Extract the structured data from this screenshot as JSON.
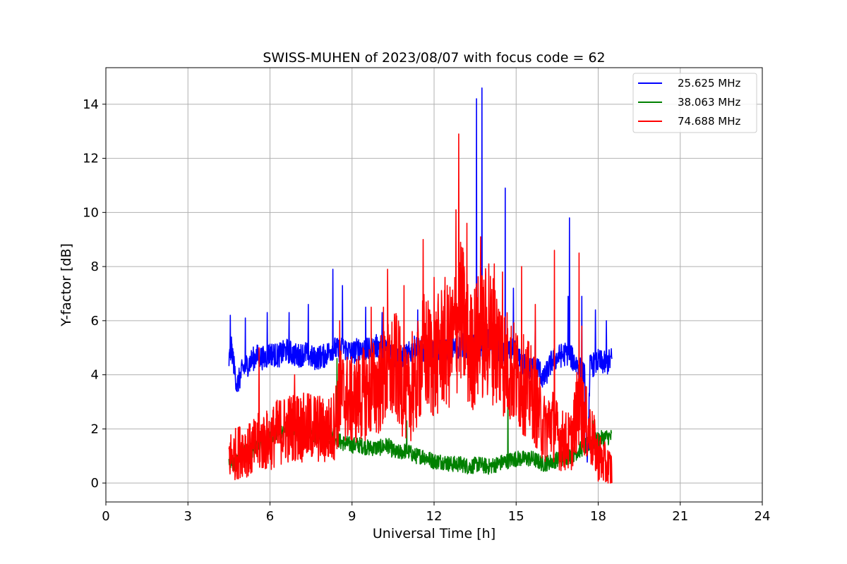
{
  "chart_data": {
    "type": "line",
    "title": "SWISS-MUHEN of 2023/08/07 with focus code = 62",
    "xlabel": "Universal Time [h]",
    "ylabel": "Y-factor [dB]",
    "xlim": [
      0,
      24
    ],
    "ylim": [
      -0.7,
      15.35
    ],
    "xticks": [
      0,
      3,
      6,
      9,
      12,
      15,
      18,
      21,
      24
    ],
    "yticks": [
      0,
      2,
      4,
      6,
      8,
      10,
      12,
      14
    ],
    "grid": true,
    "legend_position": "top-right",
    "series": [
      {
        "name": "25.625 MHz",
        "color": "#0000ff",
        "x": [
          4.5,
          4.6,
          4.7,
          4.8,
          5.0,
          5.2,
          5.5,
          5.8,
          6.0,
          6.3,
          6.6,
          7.0,
          7.3,
          7.6,
          8.0,
          8.3,
          8.5,
          8.7,
          9.0,
          9.3,
          9.6,
          10.0,
          10.3,
          10.6,
          11.0,
          11.3,
          11.6,
          12.0,
          12.3,
          12.6,
          13.0,
          13.3,
          13.55,
          13.75,
          14.0,
          14.3,
          14.6,
          14.9,
          15.2,
          15.5,
          15.8,
          16.0,
          16.3,
          16.6,
          16.9,
          17.2,
          17.5,
          17.6,
          17.7,
          18.0,
          18.3,
          18.5
        ],
        "y": [
          4.5,
          5.0,
          4.2,
          3.6,
          4.2,
          4.4,
          4.7,
          4.6,
          4.8,
          4.7,
          4.9,
          4.7,
          4.8,
          4.6,
          4.7,
          5.0,
          4.9,
          5.0,
          4.8,
          5.0,
          4.9,
          5.1,
          5.0,
          4.6,
          4.7,
          5.0,
          4.9,
          4.8,
          5.0,
          4.9,
          5.1,
          5.0,
          5.2,
          5.0,
          5.3,
          4.9,
          4.7,
          4.9,
          4.4,
          4.2,
          4.3,
          3.8,
          4.5,
          4.7,
          4.8,
          4.4,
          4.0,
          0.5,
          4.3,
          4.5,
          4.4,
          4.6
        ],
        "spikes": [
          [
            4.55,
            6.2
          ],
          [
            5.1,
            6.1
          ],
          [
            5.9,
            6.3
          ],
          [
            6.7,
            6.3
          ],
          [
            7.4,
            6.6
          ],
          [
            8.3,
            7.9
          ],
          [
            8.65,
            7.3
          ],
          [
            9.5,
            6.5
          ],
          [
            10.1,
            6.3
          ],
          [
            11.4,
            6.4
          ],
          [
            12.3,
            6.0
          ],
          [
            13.55,
            14.2
          ],
          [
            13.75,
            14.6
          ],
          [
            14.6,
            10.9
          ],
          [
            14.9,
            7.2
          ],
          [
            15.7,
            6.0
          ],
          [
            16.9,
            6.9
          ],
          [
            16.95,
            9.8
          ],
          [
            17.4,
            6.9
          ],
          [
            17.9,
            6.4
          ],
          [
            18.3,
            6.0
          ]
        ]
      },
      {
        "name": "38.063 MHz",
        "color": "#008000",
        "x": [
          4.5,
          4.7,
          5.0,
          5.3,
          5.6,
          6.0,
          6.3,
          6.6,
          7.0,
          7.3,
          7.6,
          8.0,
          8.3,
          8.6,
          9.0,
          9.3,
          9.6,
          10.0,
          10.3,
          10.6,
          11.0,
          11.3,
          11.6,
          12.0,
          12.3,
          12.6,
          13.0,
          13.3,
          13.6,
          14.0,
          14.3,
          14.6,
          15.0,
          15.3,
          15.6,
          16.0,
          16.3,
          16.6,
          17.0,
          17.3,
          17.6,
          18.0,
          18.3,
          18.5
        ],
        "y": [
          0.8,
          0.7,
          1.1,
          1.2,
          1.4,
          1.7,
          1.9,
          2.0,
          2.1,
          1.9,
          1.8,
          1.6,
          1.8,
          1.5,
          1.4,
          1.4,
          1.3,
          1.3,
          1.4,
          1.1,
          1.2,
          1.0,
          1.0,
          0.8,
          0.8,
          0.7,
          0.7,
          0.6,
          0.7,
          0.6,
          0.7,
          0.8,
          0.9,
          0.9,
          0.9,
          0.7,
          0.8,
          0.9,
          1.0,
          1.2,
          1.4,
          1.6,
          1.7,
          1.7
        ],
        "spikes": [
          [
            6.9,
            2.9
          ],
          [
            8.45,
            4.6
          ],
          [
            11.0,
            2.3
          ],
          [
            14.7,
            3.8
          ],
          [
            17.8,
            2.3
          ]
        ]
      },
      {
        "name": "74.688 MHz",
        "color": "#ff0000",
        "x": [
          4.5,
          4.8,
          5.0,
          5.3,
          5.6,
          6.0,
          6.3,
          6.6,
          7.0,
          7.3,
          7.6,
          8.0,
          8.3,
          8.6,
          9.0,
          9.3,
          9.6,
          10.0,
          10.3,
          10.6,
          11.0,
          11.3,
          11.6,
          12.0,
          12.3,
          12.6,
          13.0,
          13.3,
          13.6,
          14.0,
          14.3,
          14.6,
          15.0,
          15.3,
          15.6,
          16.0,
          16.3,
          16.6,
          17.0,
          17.3,
          17.6,
          18.0,
          18.3,
          18.5
        ],
        "y": [
          1.0,
          1.1,
          1.3,
          1.2,
          1.5,
          1.6,
          1.9,
          2.0,
          2.1,
          2.0,
          2.1,
          1.9,
          2.0,
          3.3,
          3.0,
          3.2,
          3.4,
          3.6,
          4.0,
          4.3,
          3.1,
          3.5,
          4.9,
          4.4,
          5.1,
          5.0,
          6.4,
          4.8,
          5.3,
          5.6,
          5.1,
          4.5,
          3.9,
          3.6,
          3.3,
          2.0,
          2.3,
          1.6,
          1.5,
          3.0,
          2.1,
          1.0,
          0.6,
          0.5
        ],
        "spikes": [
          [
            5.6,
            5.0
          ],
          [
            6.9,
            4.0
          ],
          [
            8.55,
            6.0
          ],
          [
            9.7,
            6.5
          ],
          [
            10.15,
            6.5
          ],
          [
            10.3,
            7.9
          ],
          [
            10.9,
            7.3
          ],
          [
            11.2,
            5.6
          ],
          [
            11.6,
            9.0
          ],
          [
            12.0,
            7.6
          ],
          [
            12.4,
            7.6
          ],
          [
            12.8,
            10.1
          ],
          [
            12.9,
            12.9
          ],
          [
            13.2,
            9.6
          ],
          [
            13.7,
            9.1
          ],
          [
            14.0,
            8.1
          ],
          [
            14.2,
            8.1
          ],
          [
            14.5,
            7.8
          ],
          [
            15.2,
            8.0
          ],
          [
            15.7,
            6.6
          ],
          [
            16.4,
            8.6
          ],
          [
            17.3,
            8.5
          ],
          [
            17.4,
            5.8
          ]
        ]
      }
    ]
  }
}
